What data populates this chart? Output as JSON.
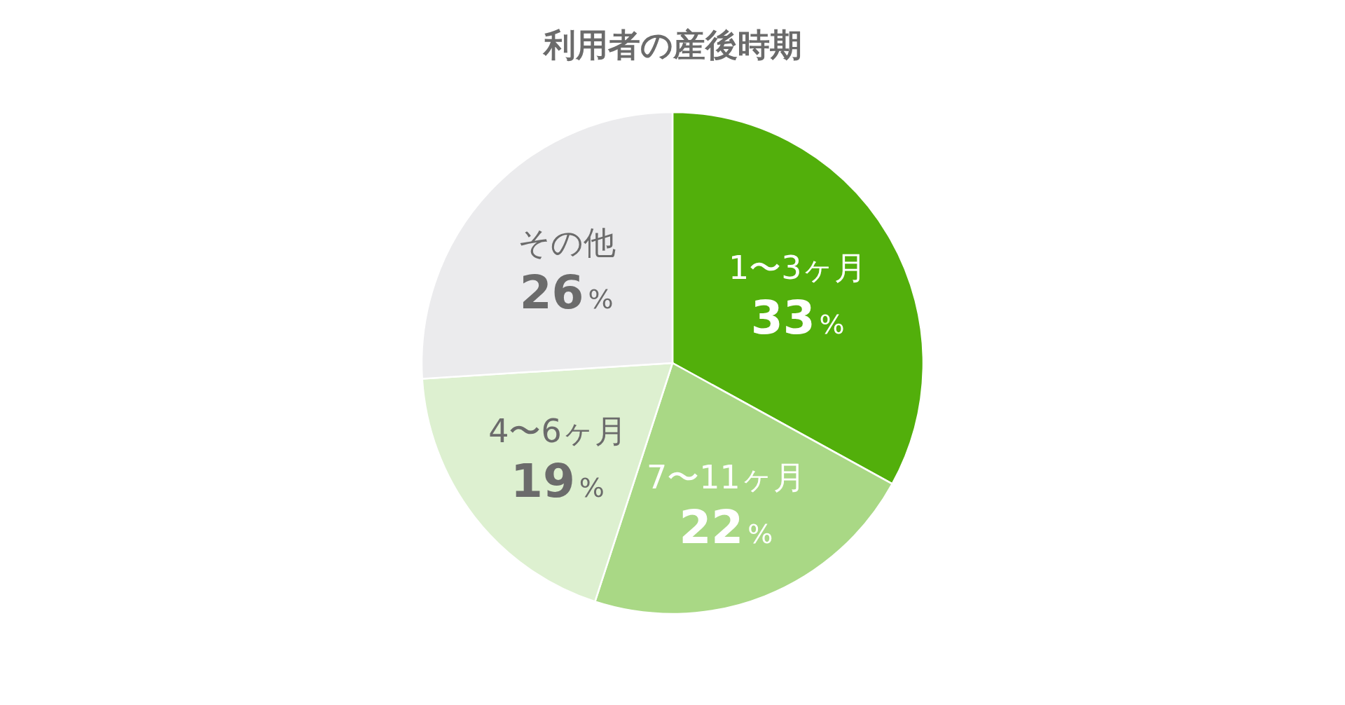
{
  "chart_data": {
    "type": "pie",
    "title": "利用者の産後時期",
    "categories": [
      "1〜3ヶ月",
      "7〜11ヶ月",
      "4〜6ヶ月",
      "その他"
    ],
    "values": [
      33,
      22,
      19,
      26
    ],
    "value_labels": [
      "33%",
      "22%",
      "19%",
      "26%"
    ],
    "colors": [
      "#52af0b",
      "#a9d885",
      "#ddf0d0",
      "#ebebed"
    ]
  }
}
